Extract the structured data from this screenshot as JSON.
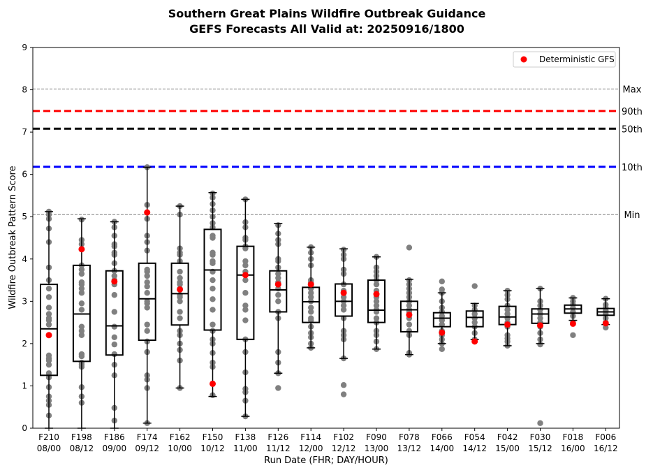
{
  "chart_data": {
    "type": "box",
    "title": "Southern Great Plains Wildfire Outbreak Guidance",
    "subtitle": "GEFS Forecasts All Valid at: 20250916/1800",
    "xlabel": "Run Date (FHR; DAY/HOUR)",
    "ylabel": "Wildfire Outbreak Pattern Score",
    "ylim": [
      0,
      9
    ],
    "yticks": [
      "0",
      "1",
      "2",
      "3",
      "4",
      "5",
      "6",
      "7",
      "8",
      "9"
    ],
    "categories": [
      {
        "fhr": "F210",
        "date": "08/00"
      },
      {
        "fhr": "F198",
        "date": "08/12"
      },
      {
        "fhr": "F186",
        "date": "09/00"
      },
      {
        "fhr": "F174",
        "date": "09/12"
      },
      {
        "fhr": "F162",
        "date": "10/00"
      },
      {
        "fhr": "F150",
        "date": "10/12"
      },
      {
        "fhr": "F138",
        "date": "11/00"
      },
      {
        "fhr": "F126",
        "date": "11/12"
      },
      {
        "fhr": "F114",
        "date": "12/00"
      },
      {
        "fhr": "F102",
        "date": "12/12"
      },
      {
        "fhr": "F090",
        "date": "13/00"
      },
      {
        "fhr": "F078",
        "date": "13/12"
      },
      {
        "fhr": "F066",
        "date": "14/00"
      },
      {
        "fhr": "F054",
        "date": "14/12"
      },
      {
        "fhr": "F042",
        "date": "15/00"
      },
      {
        "fhr": "F030",
        "date": "15/12"
      },
      {
        "fhr": "F018",
        "date": "16/00"
      },
      {
        "fhr": "F006",
        "date": "16/12"
      }
    ],
    "boxes": [
      {
        "whislo": 0.0,
        "q1": 1.25,
        "med": 2.35,
        "q3": 3.4,
        "whishi": 5.12
      },
      {
        "whislo": 0.0,
        "q1": 1.58,
        "med": 2.7,
        "q3": 3.85,
        "whishi": 4.95
      },
      {
        "whislo": 0.0,
        "q1": 1.73,
        "med": 2.42,
        "q3": 3.72,
        "whishi": 4.88
      },
      {
        "whislo": 0.12,
        "q1": 2.08,
        "med": 3.06,
        "q3": 3.9,
        "whishi": 6.17
      },
      {
        "whislo": 0.95,
        "q1": 2.44,
        "med": 3.18,
        "q3": 3.9,
        "whishi": 5.25
      },
      {
        "whislo": 0.75,
        "q1": 2.32,
        "med": 3.74,
        "q3": 4.7,
        "whishi": 5.57
      },
      {
        "whislo": 0.28,
        "q1": 2.1,
        "med": 3.62,
        "q3": 4.3,
        "whishi": 5.41
      },
      {
        "whislo": 1.3,
        "q1": 2.75,
        "med": 3.27,
        "q3": 3.72,
        "whishi": 4.84
      },
      {
        "whislo": 1.9,
        "q1": 2.5,
        "med": 2.99,
        "q3": 3.33,
        "whishi": 4.28
      },
      {
        "whislo": 1.65,
        "q1": 2.65,
        "med": 3.0,
        "q3": 3.41,
        "whishi": 4.24
      },
      {
        "whislo": 1.87,
        "q1": 2.5,
        "med": 2.79,
        "q3": 3.5,
        "whishi": 4.05
      },
      {
        "whislo": 1.74,
        "q1": 2.28,
        "med": 2.8,
        "q3": 3.0,
        "whishi": 3.52
      },
      {
        "whislo": 2.0,
        "q1": 2.4,
        "med": 2.6,
        "q3": 2.73,
        "whishi": 3.2
      },
      {
        "whislo": 2.1,
        "q1": 2.4,
        "med": 2.62,
        "q3": 2.77,
        "whishi": 2.95
      },
      {
        "whislo": 1.95,
        "q1": 2.45,
        "med": 2.63,
        "q3": 2.88,
        "whishi": 3.25
      },
      {
        "whislo": 2.0,
        "q1": 2.48,
        "med": 2.7,
        "q3": 2.82,
        "whishi": 3.3
      },
      {
        "whislo": 2.55,
        "q1": 2.72,
        "med": 2.82,
        "q3": 2.91,
        "whishi": 3.08
      },
      {
        "whislo": 2.45,
        "q1": 2.67,
        "med": 2.75,
        "q3": 2.83,
        "whishi": 3.06
      }
    ],
    "members": [
      [
        0.3,
        0.55,
        0.65,
        0.75,
        0.97,
        1.2,
        1.3,
        1.5,
        1.6,
        1.65,
        1.72,
        2.2,
        2.45,
        2.55,
        2.6,
        2.7,
        2.85,
        3.1,
        3.3,
        3.5,
        3.8,
        4.4,
        4.72,
        4.95,
        5.05,
        5.12
      ],
      [
        0.6,
        0.75,
        0.97,
        1.45,
        1.5,
        1.55,
        1.7,
        1.75,
        2.2,
        2.3,
        2.4,
        2.8,
        2.95,
        3.2,
        3.3,
        3.4,
        3.45,
        3.65,
        3.75,
        3.85,
        4.35,
        4.45,
        4.93
      ],
      [
        0.18,
        0.48,
        1.25,
        1.5,
        1.75,
        1.98,
        2.15,
        2.4,
        2.75,
        3.15,
        3.4,
        3.5,
        3.6,
        3.72,
        3.9,
        4.1,
        4.15,
        4.3,
        4.35,
        4.55,
        4.75,
        4.88
      ],
      [
        0.12,
        0.95,
        1.15,
        1.25,
        1.8,
        2.05,
        2.3,
        2.45,
        2.85,
        2.95,
        3.0,
        3.2,
        3.35,
        3.45,
        3.6,
        3.7,
        3.75,
        4.2,
        4.4,
        4.55,
        4.95,
        5.28,
        6.17
      ],
      [
        0.95,
        1.6,
        1.85,
        2.0,
        2.2,
        2.3,
        2.6,
        2.75,
        3.0,
        3.1,
        3.15,
        3.3,
        3.4,
        3.45,
        3.55,
        3.7,
        3.95,
        4.1,
        4.15,
        4.25,
        5.05,
        5.25
      ],
      [
        0.78,
        1.45,
        1.55,
        1.78,
        2.0,
        2.1,
        2.3,
        2.45,
        2.8,
        3.05,
        3.3,
        3.5,
        3.7,
        3.9,
        3.95,
        4.1,
        4.15,
        4.5,
        4.55,
        4.75,
        4.85,
        5.0,
        5.15,
        5.3,
        5.45,
        5.55
      ],
      [
        0.28,
        0.65,
        0.85,
        0.93,
        1.32,
        1.8,
        2.1,
        2.55,
        2.8,
        2.9,
        3.2,
        3.5,
        3.7,
        3.85,
        3.95,
        4.25,
        4.3,
        4.45,
        4.5,
        4.75,
        4.87,
        5.41
      ],
      [
        0.95,
        1.3,
        1.55,
        1.8,
        2.6,
        2.75,
        3.0,
        3.15,
        3.3,
        3.45,
        3.55,
        3.65,
        3.8,
        3.95,
        4.0,
        4.35,
        4.45,
        4.6,
        4.8
      ],
      [
        1.9,
        2.0,
        2.15,
        2.25,
        2.4,
        2.55,
        2.6,
        2.75,
        2.85,
        3.0,
        3.1,
        3.2,
        3.3,
        3.45,
        3.5,
        3.85,
        4.0,
        4.15,
        4.28
      ],
      [
        0.8,
        1.02,
        1.65,
        2.1,
        2.2,
        2.3,
        2.6,
        2.8,
        2.9,
        3.0,
        3.1,
        3.25,
        3.4,
        3.65,
        3.75,
        4.0,
        4.1,
        4.22
      ],
      [
        1.87,
        2.05,
        2.2,
        2.3,
        2.5,
        2.6,
        2.75,
        2.8,
        2.9,
        3.0,
        3.1,
        3.15,
        3.25,
        3.4,
        3.5,
        3.6,
        3.7,
        3.8,
        4.05
      ],
      [
        1.74,
        1.78,
        2.2,
        2.3,
        2.45,
        2.6,
        2.75,
        2.8,
        2.9,
        3.0,
        3.1,
        3.2,
        3.3,
        3.4,
        3.5,
        4.27
      ],
      [
        1.87,
        2.0,
        2.1,
        2.2,
        2.3,
        2.45,
        2.55,
        2.65,
        2.75,
        2.85,
        3.0,
        3.2,
        3.28,
        3.47
      ],
      [
        2.05,
        2.1,
        2.25,
        2.4,
        2.5,
        2.6,
        2.7,
        2.8,
        2.9,
        3.36
      ],
      [
        1.95,
        2.05,
        2.12,
        2.2,
        2.4,
        2.5,
        2.6,
        2.7,
        2.8,
        2.9,
        3.05,
        3.15,
        3.25
      ],
      [
        0.12,
        1.98,
        2.1,
        2.25,
        2.4,
        2.5,
        2.6,
        2.7,
        2.8,
        2.9,
        3.0,
        3.3
      ],
      [
        2.2,
        2.5,
        2.65,
        2.75,
        2.85,
        2.92,
        3.0,
        3.08
      ],
      [
        2.38,
        2.5,
        2.6,
        2.7,
        2.78,
        2.85,
        2.92,
        3.06
      ]
    ],
    "deterministic": [
      2.2,
      4.23,
      3.47,
      5.1,
      3.28,
      1.05,
      3.62,
      3.4,
      3.4,
      3.2,
      3.17,
      2.68,
      2.26,
      2.05,
      2.45,
      2.43,
      2.47,
      2.48
    ],
    "reference_lines": [
      {
        "label": "Max",
        "value": 8.02,
        "color": "#808080",
        "style": "dashed-thin"
      },
      {
        "label": "90th",
        "value": 7.5,
        "color": "#ff0000",
        "style": "dashed-thick"
      },
      {
        "label": "50th",
        "value": 7.08,
        "color": "#000000",
        "style": "dashed-thick"
      },
      {
        "label": "10th",
        "value": 6.18,
        "color": "#0000ff",
        "style": "dashed-thick"
      },
      {
        "label": "Min",
        "value": 5.05,
        "color": "#808080",
        "style": "dashed-thin"
      }
    ],
    "legend": {
      "position": "top-right",
      "entries": [
        {
          "label": "Deterministic GFS",
          "color": "#ff0000",
          "marker": "circle"
        }
      ]
    },
    "member_color": "#808080",
    "grid": false
  }
}
